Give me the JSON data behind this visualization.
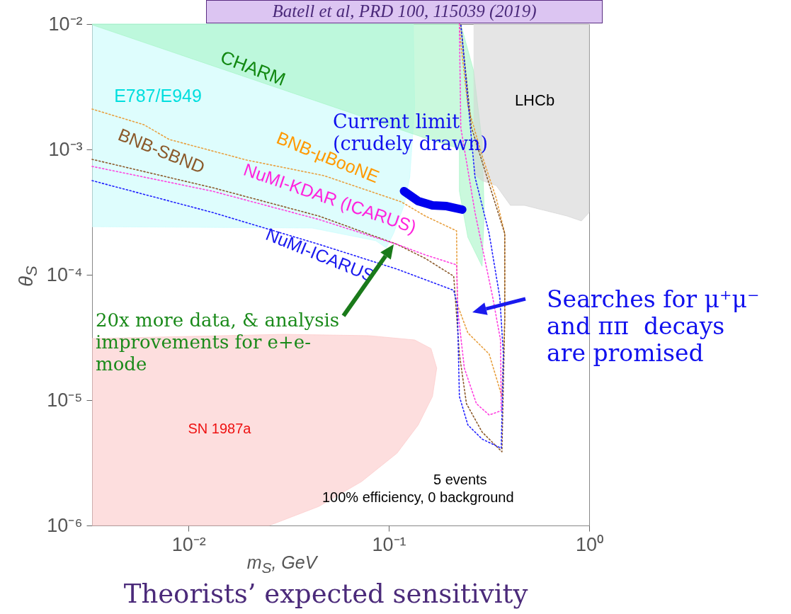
{
  "chart_data": {
    "type": "line",
    "title": "Theorists’ expected sensitivity",
    "xlabel": "m$_{S}$, GeV",
    "ylabel": "θ$_{S}$",
    "log": "xy",
    "line_style": "dotted",
    "xlim": [
      0.0033,
      1
    ],
    "ylim": [
      1e-06,
      0.01
    ],
    "xticks": [
      {
        "value": 0.01,
        "label": "10⁻²"
      },
      {
        "value": 0.1,
        "label": "10⁻¹"
      },
      {
        "value": 1,
        "label": "10⁰"
      }
    ],
    "yticks": [
      {
        "value": 1e-06,
        "label": "10⁻⁶"
      },
      {
        "value": 1e-05,
        "label": "10⁻⁵"
      },
      {
        "value": 0.0001,
        "label": "10⁻⁴"
      },
      {
        "value": 0.001,
        "label": "10⁻³"
      },
      {
        "value": 0.01,
        "label": "10⁻²"
      }
    ],
    "series": [
      {
        "name": "E787/E949",
        "type": "area",
        "color": "#c8fcfc",
        "x": [
          0.0033,
          0.1324,
          0.1346,
          0.1272,
          0.1191,
          0.1054,
          0.0971,
          0.086,
          0.0413,
          0.0033
        ],
        "values": [
          0.01,
          0.01,
          0.00221,
          0.000602,
          0.000358,
          0.000213,
          0.000164,
          0.000187,
          0.000236,
          0.000242
        ]
      },
      {
        "name": "CHARM",
        "type": "area",
        "color": "#a6f5c6",
        "x": [
          0.0033,
          0.2286,
          0.2648,
          0.292,
          0.2992,
          0.292,
          0.248,
          0.225,
          0.225,
          0.1521,
          0.0033
        ],
        "values": [
          0.01,
          0.01,
          0.00424,
          0.001154,
          0.000314,
          0.000117,
          0.000199,
          0.000464,
          0.001013,
          0.001231,
          0.00987
        ]
      },
      {
        "name": "LHCb",
        "type": "area",
        "color": "#d3d3d3",
        "x": [
          0.2648,
          1,
          1,
          0.9142,
          0.7766,
          0.6598,
          0.5603,
          0.4763,
          0.4046,
          0.3437,
          0.292,
          0.2648
        ],
        "values": [
          0.01,
          0.01,
          0.000314,
          0.000269,
          0.000294,
          0.000314,
          0.000335,
          0.000358,
          0.000358,
          0.000515,
          0.000564,
          0.000642
        ]
      },
      {
        "name": "SN 1987a",
        "type": "area",
        "color": "#fcc8c8",
        "x": [
          0.0033,
          0.0298,
          0.0793,
          0.1346,
          0.1624,
          0.1734,
          0.1651,
          0.1402,
          0.1098,
          0.0731,
          0.0448,
          0.0253,
          0.0033
        ],
        "values": [
          3.1e-05,
          3.35e-05,
          3.27e-05,
          3.02e-05,
          2.58e-05,
          1.8e-05,
          1.07e-05,
          6.34e-06,
          3.77e-06,
          2.24e-06,
          1.42e-06,
          1e-06,
          1e-06
        ]
      },
      {
        "name": "BNB-μBooNE",
        "color": "#e8a040",
        "x": [
          0.0033,
          0.00598,
          0.00802,
          0.0195,
          0.0474,
          0.1153,
          0.1521,
          0.2178,
          0.2196,
          0.248,
          0.3168,
          0.3669,
          0.379,
          0.379,
          0.3437,
          0.292,
          0.248,
          0.2286,
          0.225
        ],
        "values": [
          0.0021,
          0.001576,
          0.0012,
          0.000823,
          0.000618,
          0.000382,
          0.000294,
          0.000224,
          5.79e-05,
          3.44e-05,
          2.33e-05,
          1.07e-05,
          4.46e-05,
          0.000213,
          0.000407,
          0.00089,
          0.00221,
          0.00713,
          0.01
        ]
      },
      {
        "name": "BNB-SBND",
        "color": "#8b5a2b",
        "x": [
          0.0033,
          0.0132,
          0.0448,
          0.1098,
          0.1521,
          0.2108,
          0.225,
          0.244,
          0.292,
          0.3669,
          0.379,
          0.379,
          0.3168,
          0.2584,
          0.2286
        ],
        "values": [
          0.000834,
          0.000495,
          0.000294,
          0.000175,
          0.000135,
          9.74e-05,
          2.33e-05,
          9.37e-06,
          5.57e-06,
          3.87e-06,
          4.46e-05,
          0.000213,
          0.000529,
          0.001496,
          0.01
        ]
      },
      {
        "name": "NuMI-KDAR (ICARUS)",
        "color": "#ff40e0",
        "x": [
          0.0033,
          0.0132,
          0.0448,
          0.1098,
          0.1521,
          0.2178,
          0.2213,
          0.2381,
          0.2736,
          0.3168,
          0.3639,
          0.3609,
          0.33,
          0.2692,
          0.2286,
          0.225
        ],
        "values": [
          0.000732,
          0.000464,
          0.000276,
          0.000175,
          0.000144,
          0.00012,
          5.08e-05,
          1.8e-05,
          9.37e-06,
          7.61e-06,
          8.23e-06,
          3.02e-05,
          6.6e-05,
          0.000314,
          0.001496,
          0.01
        ]
      },
      {
        "name": "NuMI-ICARUS",
        "color": "#2020ff",
        "x": [
          0.0033,
          0.0132,
          0.0448,
          0.1098,
          0.2108,
          0.2196,
          0.225,
          0.248,
          0.292,
          0.3639,
          0.3729,
          0.358,
          0.3168,
          0.2692,
          0.2286
        ],
        "values": [
          0.000564,
          0.000314,
          0.000175,
          0.000111,
          7.51e-05,
          5.79e-05,
          1.07e-05,
          6.34e-06,
          4.89e-06,
          4.13e-06,
          2.33e-05,
          6.6e-05,
          0.000213,
          0.000602,
          0.01
        ]
      },
      {
        "line_style": "solid",
        "color": "#0000ee",
        "x": [
          0.1191,
          0.1402,
          0.1651,
          0.1943,
          0.2324
        ],
        "values": [
          0.000464,
          0.000387,
          0.000358,
          0.000353,
          0.000331
        ]
      }
    ],
    "annotations": [
      "Batell et al, PRD 100, 115039 (2019)",
      "Current limit\n(crudely drawn)",
      "Searches for μ⁺μ⁻\nand ππ  decays\nare promised",
      "20x more data, & analysis\nimprovements for e+e-\nmode",
      "5 events",
      "100% efficiency, 0 background"
    ]
  }
}
